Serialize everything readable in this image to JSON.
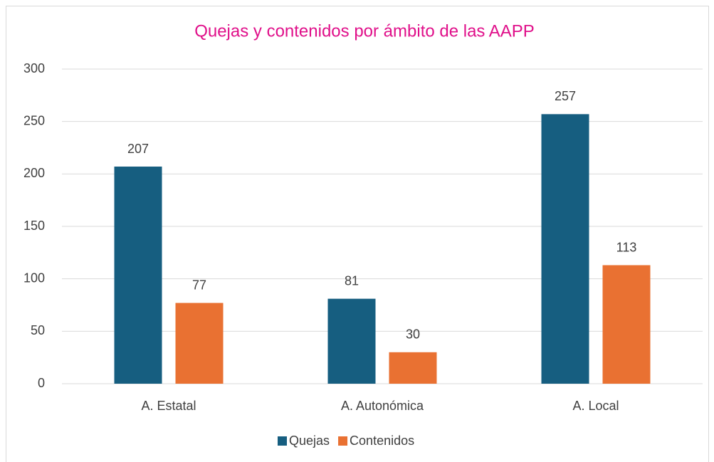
{
  "chart_data": {
    "type": "bar",
    "title": "Quejas y contenidos por ámbito de las AAPP",
    "categories": [
      "A. Estatal",
      "A. Autonómica",
      "A. Local"
    ],
    "series": [
      {
        "name": "Quejas",
        "color": "#165e80",
        "values": [
          207,
          81,
          257
        ]
      },
      {
        "name": "Contenidos",
        "color": "#e97132",
        "values": [
          77,
          30,
          113
        ]
      }
    ],
    "ylim": [
      0,
      300
    ],
    "yticks": [
      0,
      50,
      100,
      150,
      200,
      250,
      300
    ],
    "grid": true,
    "legend": "bottom"
  }
}
